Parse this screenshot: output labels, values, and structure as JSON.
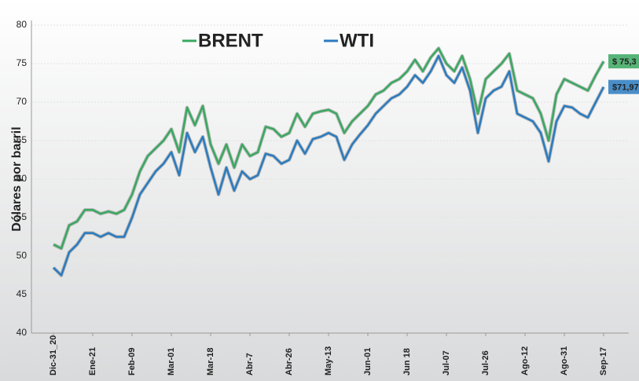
{
  "chart_data": {
    "type": "line",
    "y_label": "Dólares por barril",
    "categories": [
      "Dic-31_20",
      null,
      null,
      null,
      null,
      "Ene-21",
      null,
      null,
      null,
      null,
      "Feb-09",
      null,
      null,
      null,
      null,
      "Mar-01",
      null,
      null,
      null,
      null,
      "Mar-18",
      null,
      null,
      null,
      null,
      "Abr-7",
      null,
      null,
      null,
      null,
      "Abr-26",
      null,
      null,
      null,
      null,
      "May-13",
      null,
      null,
      null,
      null,
      "Jun-01",
      null,
      null,
      null,
      null,
      "Jun 18",
      null,
      null,
      null,
      null,
      "Jul-07",
      null,
      null,
      null,
      null,
      "Jul-26",
      null,
      null,
      null,
      null,
      "Ago-12",
      null,
      null,
      null,
      null,
      "Ago-31",
      null,
      null,
      null,
      null,
      "Sep-17"
    ],
    "series": [
      {
        "name": "BRENT",
        "color": "#3aa860",
        "values": [
          51.5,
          51,
          54,
          54.5,
          56,
          56,
          55.5,
          55.8,
          55.5,
          56,
          58,
          61,
          63,
          64,
          65,
          66.5,
          63.5,
          69.3,
          67,
          69.5,
          64.5,
          62,
          64.5,
          61.5,
          64.5,
          63,
          63.5,
          66.8,
          66.5,
          65.5,
          66,
          68.5,
          66.8,
          68.5,
          68.8,
          69,
          68.5,
          66,
          67.5,
          68.5,
          69.5,
          71,
          71.5,
          72.5,
          73,
          74,
          75.5,
          74,
          75.8,
          77,
          75,
          74,
          76,
          73,
          68.5,
          73,
          74,
          75,
          76.3,
          71.5,
          71,
          70.5,
          68.5,
          65,
          71,
          73,
          72.5,
          72,
          71.5,
          73.5,
          75.3
        ]
      },
      {
        "name": "WTI",
        "color": "#2a7bbf",
        "values": [
          48.5,
          47.5,
          50.5,
          51.5,
          53,
          53,
          52.5,
          53,
          52.5,
          52.5,
          55,
          58,
          59.5,
          61,
          62,
          63.5,
          60.5,
          66,
          63.5,
          65.5,
          61.5,
          58,
          61.5,
          58.5,
          61,
          60,
          60.5,
          63.3,
          63,
          62,
          62.5,
          65,
          63.3,
          65.2,
          65.5,
          66,
          65.5,
          62.5,
          64.5,
          65.8,
          67,
          68.5,
          69.5,
          70.5,
          71,
          72,
          73.5,
          72.5,
          74,
          76,
          73.5,
          72.5,
          74.5,
          71.5,
          66,
          70.5,
          71.5,
          72,
          74,
          68.5,
          68,
          67.5,
          66,
          62.3,
          67.5,
          69.5,
          69.3,
          68.5,
          68,
          70,
          71.97
        ]
      }
    ],
    "end_labels": [
      "$ 75,3",
      "$71,97"
    ],
    "ylim": [
      40,
      80
    ],
    "yticks": [
      40,
      45,
      50,
      55,
      60,
      65,
      70,
      75,
      80
    ],
    "grid": true
  }
}
